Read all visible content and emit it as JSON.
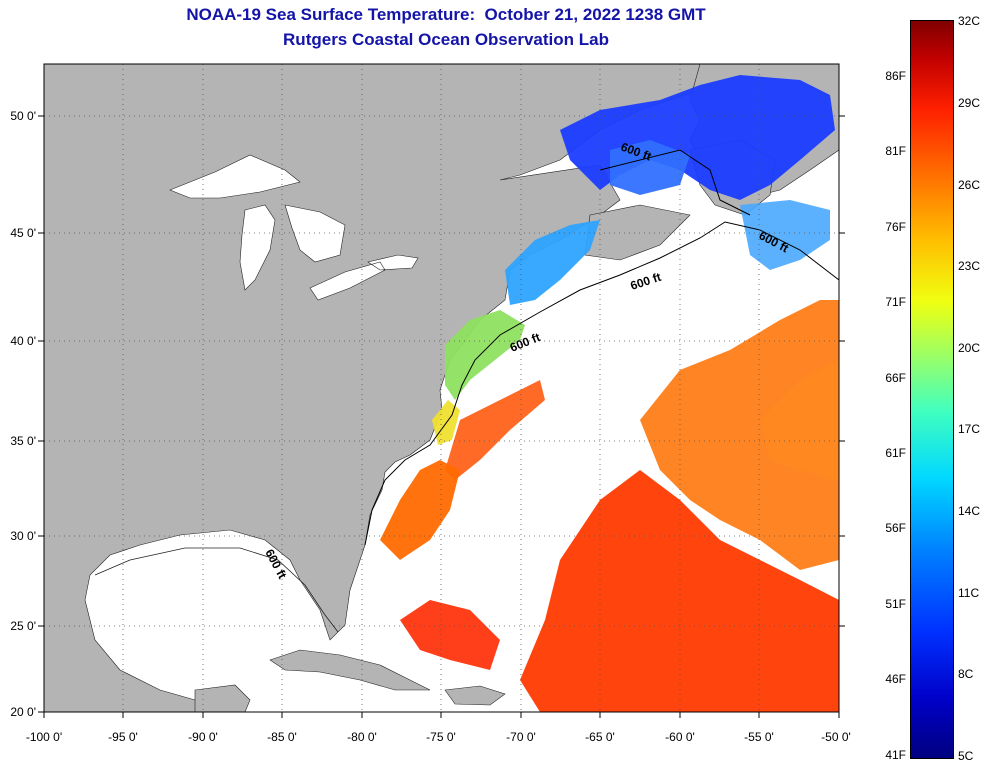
{
  "title": {
    "line1": "NOAA-19 Sea Surface Temperature:  October 21, 2022 1238 GMT",
    "line2": "Rutgers Coastal Ocean Observation Lab"
  },
  "map": {
    "lat_labels": [
      "50 0'",
      "45 0'",
      "40 0'",
      "35 0'",
      "30 0'",
      "25 0'",
      "20 0'"
    ],
    "lon_labels": [
      "-100 0'",
      "-95 0'",
      "-90 0'",
      "-85 0'",
      "-80 0'",
      "-75 0'",
      "-70 0'",
      "-65 0'",
      "-60 0'",
      "-55 0'",
      "-50 0'"
    ],
    "contour_labels": [
      "600 ft",
      "600 ft",
      "600 ft",
      "600 ft",
      "600 ft"
    ],
    "colors": {
      "land": "#b4b4b4",
      "no_data": "#ffffff",
      "title_text": "#1414a8"
    }
  },
  "colorbar": {
    "fahrenheit": [
      "86F",
      "81F",
      "76F",
      "71F",
      "66F",
      "61F",
      "56F",
      "51F",
      "46F",
      "41F"
    ],
    "celsius": [
      "32C",
      "29C",
      "26C",
      "23C",
      "20C",
      "17C",
      "14C",
      "11C",
      "8C",
      "5C"
    ]
  }
}
